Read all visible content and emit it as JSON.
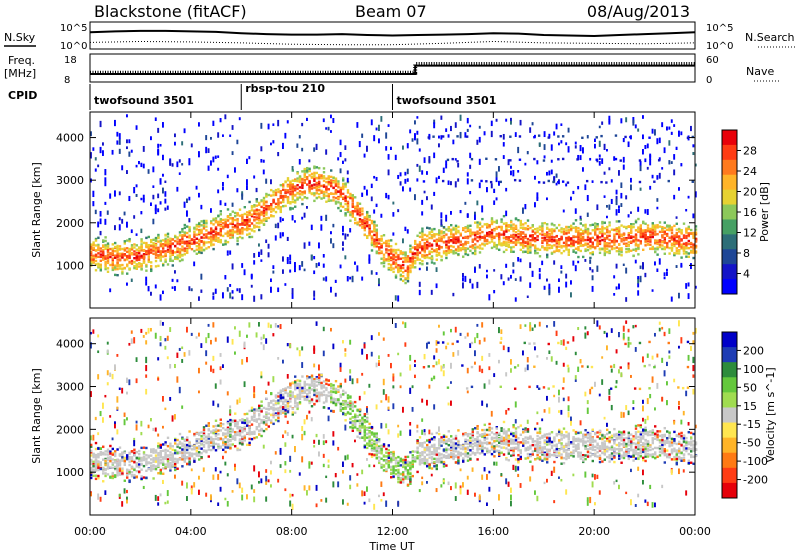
{
  "header": {
    "station": "Blackstone (fitACF)",
    "beam": "Beam 07",
    "date": "08/Aug/2013"
  },
  "top_panels": {
    "nsky_label": "N.Sky",
    "nsearch_label": "N.Search",
    "freq_label_1": "Freq.",
    "freq_label_2": "[MHz]",
    "nave_label": "Nave",
    "cpid_label": "CPID",
    "n_ticks_left": [
      "10^5",
      "10^0"
    ],
    "n_ticks_right": [
      "10^5",
      "10^0"
    ],
    "freq_ticks": [
      "18",
      "8"
    ],
    "nave_ticks": [
      "60",
      "0"
    ]
  },
  "cpid_segments": [
    {
      "label": "twofsound 3501",
      "start_hour": 0,
      "end_hour": 6
    },
    {
      "label": "rbsp-tou 210",
      "start_hour": 6,
      "end_hour": 12
    },
    {
      "label": "twofsound 3501",
      "start_hour": 12,
      "end_hour": 24
    }
  ],
  "axes": {
    "xlabel": "Time UT",
    "x_ticks": [
      "00:00",
      "04:00",
      "08:00",
      "12:00",
      "16:00",
      "20:00",
      "00:00"
    ],
    "ylabel": "Slant Range [km]",
    "y_ticks": [
      "4000",
      "3000",
      "2000",
      "1000"
    ]
  },
  "power_colorbar": {
    "label": "Power [dB]",
    "ticks": [
      "28",
      "24",
      "20",
      "16",
      "12",
      "8",
      "4"
    ],
    "colors": [
      "#e8000a",
      "#ff3c14",
      "#ff7a1e",
      "#ffb428",
      "#e6d232",
      "#8cc85a",
      "#46a064",
      "#2d6e78",
      "#1e4696",
      "#1414c8",
      "#0000ff"
    ]
  },
  "velocity_colorbar": {
    "label": "Velocity [m s^-1]",
    "ticks": [
      "200",
      "100",
      "50",
      "15",
      "-15",
      "-50",
      "-100",
      "-200"
    ],
    "colors": [
      "#0000c8",
      "#1e3cb4",
      "#2d8c3c",
      "#64c83c",
      "#a0dc50",
      "#c8c8c8",
      "#ffe650",
      "#ffb428",
      "#ff7a14",
      "#ff3c14",
      "#e6000a"
    ]
  },
  "chart_data": [
    {
      "type": "line",
      "title": "N.Sky / N.Search",
      "x_unit": "hours UT",
      "series": [
        {
          "name": "N.Sky",
          "x": [
            0,
            1,
            2,
            3,
            4,
            5,
            6,
            7,
            8,
            9,
            10,
            11,
            12,
            13,
            14,
            15,
            16,
            17,
            18,
            19,
            20,
            21,
            22,
            23,
            24
          ],
          "values_log10": [
            3.2,
            3.4,
            3.5,
            3.5,
            3.4,
            3.3,
            3.0,
            2.8,
            2.7,
            2.7,
            2.8,
            2.6,
            2.5,
            2.6,
            2.7,
            2.8,
            3.0,
            2.9,
            2.6,
            2.5,
            2.4,
            2.6,
            2.8,
            3.0,
            3.2
          ]
        },
        {
          "name": "N.Search",
          "x": [
            0,
            2,
            4,
            6,
            8,
            10,
            12,
            14,
            16,
            18,
            20,
            22,
            24
          ],
          "values_log10": [
            1.0,
            1.2,
            1.1,
            0.9,
            0.6,
            0.5,
            0.5,
            0.8,
            1.2,
            0.9,
            0.8,
            0.7,
            0.9
          ]
        }
      ],
      "ylim_log10": [
        0,
        5
      ]
    },
    {
      "type": "line",
      "title": "Freq. / Nave",
      "series": [
        {
          "name": "Freq. [MHz]",
          "x": [
            0,
            12.9,
            12.9,
            24
          ],
          "values": [
            10.5,
            10.5,
            14,
            14
          ]
        },
        {
          "name": "Nave",
          "x": [
            0,
            12.9,
            12.9,
            24
          ],
          "values": [
            18,
            18,
            40,
            40
          ]
        }
      ],
      "freq_ylim": [
        8,
        18
      ],
      "nave_ylim": [
        0,
        60
      ]
    },
    {
      "type": "heatmap",
      "title": "Power [dB]",
      "xlabel": "Time UT",
      "ylabel": "Slant Range [km]",
      "x_unit": "hours UT",
      "xlim": [
        0,
        24
      ],
      "ylim": [
        0,
        4600
      ],
      "zlim": [
        0,
        32
      ],
      "main_echo_band": {
        "x": [
          0,
          1,
          2,
          3,
          4,
          5,
          6,
          6.5,
          7,
          7.5,
          8,
          8.5,
          9,
          9.5,
          10,
          10.5,
          11,
          11.5,
          12,
          12.5,
          13,
          14,
          15,
          16,
          17,
          18,
          19,
          20,
          21,
          22,
          23,
          24
        ],
        "range_km": [
          1300,
          1200,
          1250,
          1400,
          1600,
          1850,
          2000,
          2150,
          2400,
          2650,
          2800,
          2950,
          2950,
          2850,
          2700,
          2300,
          1900,
          1450,
          1200,
          1000,
          1450,
          1550,
          1650,
          1800,
          1700,
          1650,
          1650,
          1650,
          1650,
          1700,
          1650,
          1600
        ]
      }
    },
    {
      "type": "heatmap",
      "title": "Velocity [m s^-1]",
      "xlabel": "Time UT",
      "ylabel": "Slant Range [km]",
      "x_unit": "hours UT",
      "xlim": [
        0,
        24
      ],
      "ylim": [
        0,
        4600
      ],
      "zlim": [
        -250,
        250
      ],
      "main_echo_band": {
        "x": [
          0,
          1,
          2,
          3,
          4,
          5,
          6,
          6.5,
          7,
          7.5,
          8,
          8.5,
          9,
          9.5,
          10,
          10.5,
          11,
          11.5,
          12,
          12.5,
          13,
          14,
          15,
          16,
          17,
          18,
          19,
          20,
          21,
          22,
          23,
          24
        ],
        "range_km": [
          1300,
          1200,
          1250,
          1400,
          1600,
          1850,
          2000,
          2150,
          2400,
          2650,
          2800,
          2950,
          2950,
          2850,
          2700,
          2300,
          1900,
          1450,
          1200,
          1000,
          1450,
          1550,
          1650,
          1800,
          1700,
          1650,
          1650,
          1650,
          1650,
          1700,
          1650,
          1600
        ]
      }
    }
  ]
}
